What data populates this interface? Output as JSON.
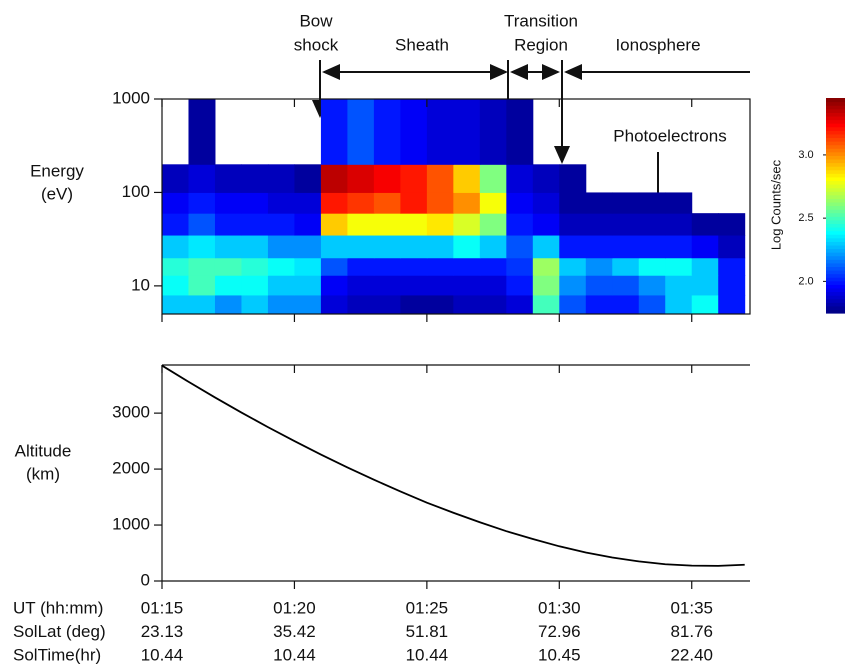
{
  "chart_data": [
    {
      "type": "heatmap",
      "annotations": {
        "bow_shock": [
          "Bow",
          "shock"
        ],
        "sheath": "Sheath",
        "transition": [
          "Transition",
          "Region"
        ],
        "ionosphere": "Ionosphere",
        "photoelectrons": "Photoelectrons"
      },
      "ylabel": [
        "Energy",
        "(eV)"
      ],
      "colorbar_label": "Log Counts/sec",
      "log_y": true,
      "xlim": [
        75,
        97.2
      ],
      "ylim": [
        5,
        1000
      ],
      "yticks": [
        10,
        100,
        1000
      ],
      "xticks": [
        75,
        80,
        85,
        90,
        95
      ],
      "clim": [
        1.75,
        3.45
      ],
      "cticks": [
        {
          "value": 2,
          "label": "2.0"
        },
        {
          "value": 2.5,
          "label": "2.5"
        },
        {
          "value": 3,
          "label": "3.0"
        }
      ],
      "xbins": [
        75,
        76,
        77,
        78,
        79,
        80,
        81,
        82,
        83,
        84,
        85,
        86,
        87,
        88,
        89,
        90,
        91,
        92,
        93,
        94,
        95,
        96,
        97
      ],
      "ybins": [
        5,
        8,
        13,
        20,
        35,
        60,
        100,
        200,
        1000
      ],
      "values": [
        [
          2.3,
          2.3,
          2.2,
          2.3,
          2.2,
          2.2,
          1.9,
          1.85,
          1.85,
          1.8,
          1.8,
          1.85,
          1.85,
          1.9,
          2.5,
          2.1,
          2.0,
          2.0,
          2.1,
          2.3,
          2.4,
          2.0
        ],
        [
          2.4,
          2.5,
          2.4,
          2.4,
          2.3,
          2.3,
          1.95,
          1.9,
          1.9,
          1.9,
          1.9,
          1.9,
          1.9,
          2.0,
          2.6,
          2.2,
          2.1,
          2.1,
          2.2,
          2.3,
          2.3,
          2.0
        ],
        [
          2.45,
          2.5,
          2.5,
          2.45,
          2.4,
          2.35,
          2.1,
          2.0,
          2.0,
          2.0,
          2.0,
          2.0,
          2.0,
          2.05,
          2.65,
          2.3,
          2.2,
          2.3,
          2.4,
          2.4,
          2.3,
          2.0
        ],
        [
          2.3,
          2.35,
          2.3,
          2.3,
          2.2,
          2.2,
          2.3,
          2.3,
          2.3,
          2.3,
          2.3,
          2.4,
          2.3,
          2.1,
          2.3,
          2.0,
          2.0,
          2.0,
          2.0,
          2.0,
          1.95,
          1.85
        ],
        [
          2.0,
          2.1,
          2.0,
          2.0,
          2.0,
          1.95,
          2.9,
          2.8,
          2.8,
          2.8,
          2.85,
          2.75,
          2.6,
          2.0,
          1.95,
          1.85,
          1.85,
          1.85,
          1.85,
          1.85,
          1.8,
          1.8
        ],
        [
          1.95,
          2.0,
          1.95,
          1.95,
          1.9,
          1.9,
          3.2,
          3.15,
          3.1,
          3.2,
          3.1,
          3.0,
          2.8,
          1.95,
          1.9,
          1.8,
          1.8,
          1.8,
          1.8,
          1.8,
          null,
          null
        ],
        [
          1.85,
          1.9,
          1.85,
          1.85,
          1.85,
          1.8,
          3.35,
          3.3,
          3.25,
          3.2,
          3.1,
          2.9,
          2.6,
          1.9,
          1.85,
          1.8,
          null,
          null,
          null,
          null,
          null,
          null
        ],
        [
          null,
          1.8,
          null,
          null,
          null,
          null,
          2.0,
          2.1,
          2.0,
          1.95,
          1.9,
          1.9,
          1.85,
          1.8,
          null,
          null,
          null,
          null,
          null,
          null,
          null,
          null
        ]
      ]
    },
    {
      "type": "line",
      "ylabel": [
        "Altitude",
        "(km)"
      ],
      "xlim": [
        75,
        97.2
      ],
      "ylim": [
        0,
        3860
      ],
      "yticks": [
        0,
        1000,
        2000,
        3000
      ],
      "xticks": [
        {
          "value": 75,
          "label": "01:15"
        },
        {
          "value": 80,
          "label": "01:20"
        },
        {
          "value": 85,
          "label": "01:25"
        },
        {
          "value": 90,
          "label": "01:30"
        },
        {
          "value": 95,
          "label": "01:35"
        }
      ],
      "color": "#000000",
      "x": [
        75,
        76,
        77,
        78,
        79,
        80,
        81,
        82,
        83,
        84,
        85,
        86,
        87,
        88,
        89,
        90,
        91,
        92,
        93,
        94,
        95,
        96,
        97
      ],
      "values": [
        3850,
        3560,
        3280,
        3010,
        2750,
        2500,
        2260,
        2030,
        1810,
        1600,
        1400,
        1220,
        1050,
        890,
        750,
        620,
        510,
        420,
        350,
        300,
        275,
        270,
        290
      ],
      "table": [
        {
          "label": "UT (hh:mm)"
        },
        {
          "label": "SolLat (deg)",
          "values": [
            "23.13",
            "35.42",
            "51.81",
            "72.96",
            "81.76"
          ]
        },
        {
          "label": "SolTime(hr)",
          "values": [
            "10.44",
            "10.44",
            "10.44",
            "10.45",
            "22.40"
          ]
        }
      ]
    }
  ]
}
